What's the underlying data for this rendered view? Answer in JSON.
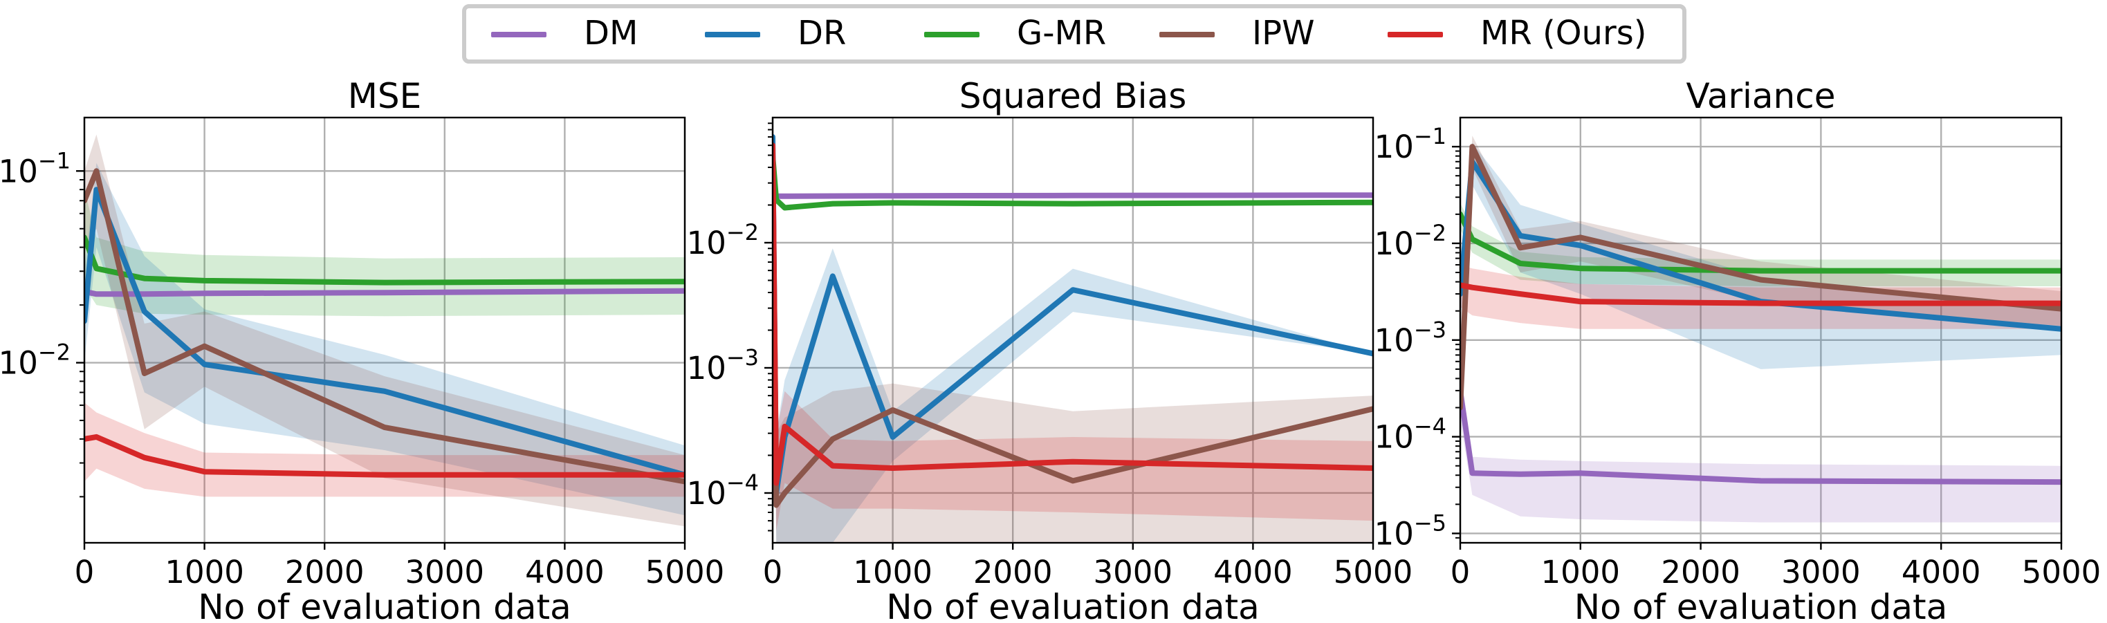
{
  "legend": [
    {
      "name": "DM",
      "color": "#9467bd"
    },
    {
      "name": "DR",
      "color": "#1f77b4"
    },
    {
      "name": "G-MR",
      "color": "#2ca02c"
    },
    {
      "name": "IPW",
      "color": "#8c564b"
    },
    {
      "name": "MR (Ours)",
      "color": "#d62728"
    }
  ],
  "chart_data": [
    {
      "type": "line",
      "title": "MSE",
      "xlabel": "No of evaluation data",
      "ylabel": "",
      "yscale": "log",
      "xlim": [
        0,
        5000
      ],
      "ylim": [
        0.00115,
        0.19
      ],
      "xticks": [
        0,
        1000,
        2000,
        3000,
        4000,
        5000
      ],
      "yticks": [
        {
          "value": 0.1,
          "base": "10",
          "exp": "−1"
        },
        {
          "value": 0.01,
          "base": "10",
          "exp": "−2"
        }
      ],
      "grid": true,
      "series": [
        {
          "name": "DM",
          "color": "#9467bd",
          "x": [
            0,
            100,
            500,
            1000,
            2500,
            5000
          ],
          "y": [
            0.0235,
            0.0228,
            0.0228,
            0.023,
            0.0232,
            0.0237
          ],
          "lower": [
            0.0225,
            0.0222,
            0.0222,
            0.0224,
            0.0226,
            0.023
          ],
          "upper": [
            0.0245,
            0.0234,
            0.0234,
            0.0236,
            0.0238,
            0.0244
          ]
        },
        {
          "name": "G-MR",
          "color": "#2ca02c",
          "x": [
            0,
            100,
            500,
            1000,
            2500,
            5000
          ],
          "y": [
            0.045,
            0.031,
            0.0275,
            0.0268,
            0.0262,
            0.0265
          ],
          "lower": [
            0.025,
            0.02,
            0.018,
            0.0178,
            0.0175,
            0.0178
          ],
          "upper": [
            0.08,
            0.045,
            0.038,
            0.0365,
            0.035,
            0.0355
          ]
        },
        {
          "name": "DR",
          "color": "#1f77b4",
          "x": [
            0,
            100,
            500,
            1000,
            2500,
            5000
          ],
          "y": [
            0.0165,
            0.08,
            0.0185,
            0.0098,
            0.0071,
            0.0026
          ],
          "lower": [
            0.01,
            0.04,
            0.007,
            0.0048,
            0.0035,
            0.0016
          ],
          "upper": [
            0.03,
            0.11,
            0.036,
            0.019,
            0.011,
            0.0037
          ]
        },
        {
          "name": "IPW",
          "color": "#8c564b",
          "x": [
            0,
            100,
            500,
            1000,
            2500,
            5000
          ],
          "y": [
            0.07,
            0.1,
            0.0088,
            0.0122,
            0.0046,
            0.0024
          ],
          "lower": [
            0.04,
            0.05,
            0.0045,
            0.0075,
            0.0025,
            0.0014
          ],
          "upper": [
            0.1,
            0.155,
            0.016,
            0.0185,
            0.0085,
            0.0033
          ]
        },
        {
          "name": "MR (Ours)",
          "color": "#d62728",
          "x": [
            0,
            100,
            500,
            1000,
            2500,
            5000
          ],
          "y": [
            0.004,
            0.0041,
            0.0032,
            0.0027,
            0.0026,
            0.0026
          ],
          "lower": [
            0.0024,
            0.0028,
            0.0022,
            0.002,
            0.002,
            0.002
          ],
          "upper": [
            0.0062,
            0.0055,
            0.0043,
            0.0034,
            0.0033,
            0.0033
          ]
        }
      ]
    },
    {
      "type": "line",
      "title": "Squared Bias",
      "xlabel": "No of evaluation data",
      "ylabel": "",
      "yscale": "log",
      "xlim": [
        0,
        5000
      ],
      "ylim": [
        4e-05,
        0.1
      ],
      "xticks": [
        0,
        1000,
        2000,
        3000,
        4000,
        5000
      ],
      "yticks": [
        {
          "value": 0.01,
          "base": "10",
          "exp": "−2"
        },
        {
          "value": 0.001,
          "base": "10",
          "exp": "−3"
        },
        {
          "value": 0.0001,
          "base": "10",
          "exp": "−4"
        }
      ],
      "grid": true,
      "series": [
        {
          "name": "DM",
          "color": "#9467bd",
          "x": [
            0,
            100,
            500,
            1000,
            2500,
            5000
          ],
          "y": [
            0.0235,
            0.0235,
            0.0236,
            0.0237,
            0.0238,
            0.024
          ]
        },
        {
          "name": "G-MR",
          "color": "#2ca02c",
          "x": [
            0,
            30,
            100,
            500,
            1000,
            2500,
            5000
          ],
          "y": [
            0.05,
            0.022,
            0.019,
            0.0205,
            0.0208,
            0.0205,
            0.021
          ]
        },
        {
          "name": "DR",
          "color": "#1f77b4",
          "x": [
            0,
            30,
            100,
            500,
            1000,
            2500,
            5000
          ],
          "y": [
            0.07,
            0.0001,
            0.00028,
            0.0054,
            0.00028,
            0.0042,
            0.0013
          ],
          "lower": [
            0.05,
            4e-05,
            4e-05,
            4e-05,
            0.00018,
            0.0028,
            0.0013
          ],
          "upper": [
            0.09,
            0.0003,
            0.0008,
            0.009,
            0.00045,
            0.0062,
            0.0013
          ]
        },
        {
          "name": "IPW",
          "color": "#8c564b",
          "x": [
            0,
            30,
            100,
            500,
            1000,
            2500,
            5000
          ],
          "y": [
            0.06,
            8e-05,
            0.0001,
            0.00027,
            0.00046,
            0.000125,
            0.00047
          ],
          "lower": [
            0.04,
            4e-05,
            4e-05,
            4e-05,
            4e-05,
            4e-05,
            4e-05
          ],
          "upper": [
            0.08,
            0.0003,
            0.0004,
            0.00065,
            0.00075,
            0.00045,
            0.0006
          ]
        },
        {
          "name": "MR (Ours)",
          "color": "#d62728",
          "x": [
            0,
            30,
            100,
            500,
            1000,
            2500,
            5000
          ],
          "y": [
            0.06,
            0.00012,
            0.00034,
            0.000165,
            0.000158,
            0.000178,
            0.000158
          ],
          "lower": [
            0.04,
            5e-05,
            0.00012,
            7.5e-05,
            7.5e-05,
            7e-05,
            6e-05
          ],
          "upper": [
            0.08,
            0.0003,
            0.00065,
            0.00027,
            0.00026,
            0.00028,
            0.00026
          ]
        }
      ]
    },
    {
      "type": "line",
      "title": "Variance",
      "xlabel": "No of evaluation data",
      "ylabel": "",
      "yscale": "log",
      "xlim": [
        0,
        5000
      ],
      "ylim": [
        8e-06,
        0.2
      ],
      "xticks": [
        0,
        1000,
        2000,
        3000,
        4000,
        5000
      ],
      "yticks": [
        {
          "value": 0.1,
          "base": "10",
          "exp": "−1"
        },
        {
          "value": 0.01,
          "base": "10",
          "exp": "−2"
        },
        {
          "value": 0.001,
          "base": "10",
          "exp": "−3"
        },
        {
          "value": 0.0001,
          "base": "10",
          "exp": "−4"
        },
        {
          "value": 1e-05,
          "base": "10",
          "exp": "−5"
        }
      ],
      "grid": true,
      "series": [
        {
          "name": "DM",
          "color": "#9467bd",
          "x": [
            0,
            100,
            500,
            1000,
            2500,
            5000
          ],
          "y": [
            0.0003,
            4.2e-05,
            4.1e-05,
            4.2e-05,
            3.5e-05,
            3.4e-05
          ],
          "lower": [
            0.00015,
            2.5e-05,
            1.5e-05,
            1.4e-05,
            1.3e-05,
            1.3e-05
          ],
          "upper": [
            0.0005,
            6.2e-05,
            5.8e-05,
            5.6e-05,
            5.2e-05,
            5e-05
          ]
        },
        {
          "name": "G-MR",
          "color": "#2ca02c",
          "x": [
            0,
            100,
            500,
            1000,
            2500,
            5000
          ],
          "y": [
            0.02,
            0.011,
            0.0062,
            0.0055,
            0.0052,
            0.0052
          ],
          "lower": [
            0.014,
            0.008,
            0.0042,
            0.0038,
            0.0036,
            0.0036
          ],
          "upper": [
            0.026,
            0.015,
            0.0082,
            0.0072,
            0.0068,
            0.0068
          ]
        },
        {
          "name": "DR",
          "color": "#1f77b4",
          "x": [
            0,
            100,
            500,
            1000,
            2500,
            5000
          ],
          "y": [
            0.003,
            0.07,
            0.012,
            0.0095,
            0.0025,
            0.0013
          ],
          "lower": [
            0.0015,
            0.04,
            0.005,
            0.003,
            0.0005,
            0.0007
          ],
          "upper": [
            0.005,
            0.11,
            0.025,
            0.016,
            0.0045,
            0.0022
          ]
        },
        {
          "name": "IPW",
          "color": "#8c564b",
          "x": [
            0,
            100,
            500,
            1000,
            2500,
            5000
          ],
          "y": [
            0.0002,
            0.1,
            0.009,
            0.0115,
            0.0042,
            0.0021
          ],
          "lower": [
            0.0001,
            0.06,
            0.005,
            0.0065,
            0.0025,
            0.0014
          ],
          "upper": [
            0.0004,
            0.13,
            0.014,
            0.017,
            0.0065,
            0.0032
          ]
        },
        {
          "name": "MR (Ours)",
          "color": "#d62728",
          "x": [
            0,
            100,
            500,
            1000,
            2500,
            5000
          ],
          "y": [
            0.0037,
            0.0035,
            0.003,
            0.0025,
            0.0024,
            0.0024
          ],
          "lower": [
            0.0022,
            0.0018,
            0.0015,
            0.0013,
            0.0013,
            0.0013
          ],
          "upper": [
            0.006,
            0.0055,
            0.0045,
            0.0038,
            0.0035,
            0.0035
          ]
        }
      ]
    }
  ]
}
